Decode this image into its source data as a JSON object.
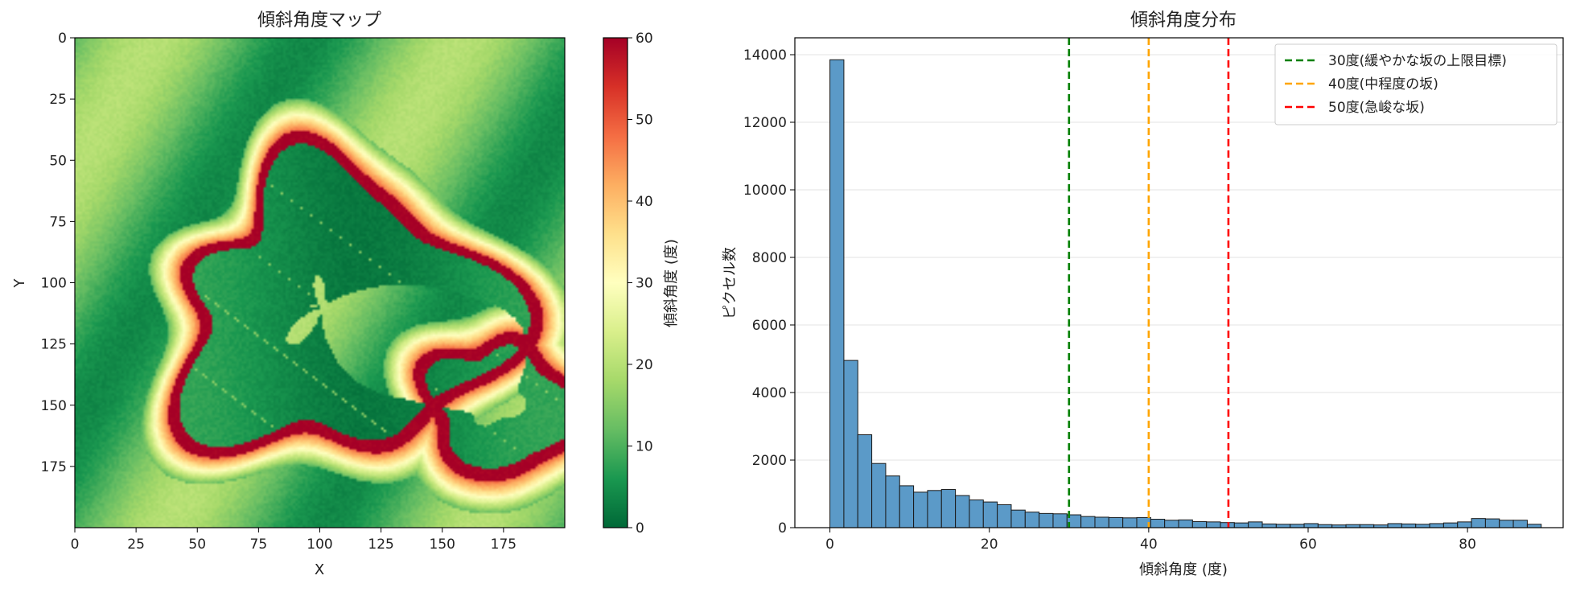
{
  "chart_data": [
    {
      "type": "heatmap",
      "title": "傾斜角度マップ",
      "xlabel": "X",
      "ylabel": "Y",
      "xlim": [
        0,
        200
      ],
      "ylim": [
        200,
        0
      ],
      "xticks": [
        "0",
        "25",
        "50",
        "75",
        "100",
        "125",
        "150",
        "175"
      ],
      "yticks": [
        "0",
        "25",
        "50",
        "75",
        "100",
        "125",
        "150",
        "175"
      ],
      "colormap": "RdYlGn_r",
      "colormap_stops": [
        "#006837",
        "#1a9850",
        "#66bd63",
        "#a6d96a",
        "#d9ef8b",
        "#ffffbf",
        "#fee08b",
        "#fdae61",
        "#f46d43",
        "#d73027",
        "#a50026"
      ],
      "colorbar": {
        "label": "傾斜角度 (度)",
        "range": [
          0,
          60
        ],
        "ticks": [
          "0",
          "10",
          "20",
          "30",
          "40",
          "50",
          "60"
        ]
      }
    },
    {
      "type": "bar",
      "title": "傾斜角度分布",
      "xlabel": "傾斜角度 (度)",
      "ylabel": "ピクセル数",
      "xlim": [
        -4.4,
        92
      ],
      "ylim": [
        0,
        14500
      ],
      "xticks": [
        "0",
        "20",
        "40",
        "60",
        "80"
      ],
      "yticks": [
        "0",
        "2000",
        "4000",
        "6000",
        "8000",
        "10000",
        "12000",
        "14000"
      ],
      "bin_start": 0,
      "bin_width": 1.75,
      "values": [
        13850,
        4950,
        2750,
        1900,
        1530,
        1240,
        1050,
        1100,
        1130,
        950,
        820,
        760,
        680,
        520,
        460,
        420,
        410,
        380,
        330,
        310,
        300,
        290,
        300,
        250,
        220,
        230,
        180,
        170,
        150,
        140,
        170,
        110,
        100,
        100,
        120,
        90,
        80,
        90,
        90,
        80,
        120,
        110,
        100,
        120,
        140,
        170,
        270,
        260,
        220,
        220,
        100
      ],
      "bar_color": "#5b9ac8",
      "grid": "y",
      "vlines": [
        {
          "x": 30,
          "color": "#008000",
          "label": "30度(緩やかな坂の上限目標)"
        },
        {
          "x": 40,
          "color": "#ffa500",
          "label": "40度(中程度の坂)"
        },
        {
          "x": 50,
          "color": "#ff0000",
          "label": "50度(急峻な坂)"
        }
      ],
      "legend": "top-right"
    }
  ]
}
